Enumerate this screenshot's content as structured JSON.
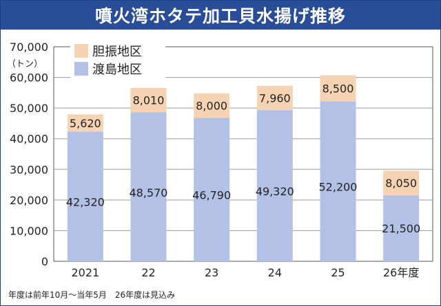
{
  "title": "噴火湾ホタテ加工貝水揚げ推移",
  "footnote": "年度は前年10月～当年5月　26年度は見込み",
  "colors": {
    "title_bg": "#2a4d97",
    "iburi": "#f5d3b3",
    "oshima": "#b4c1e6",
    "frame": "#1f3f86"
  },
  "chart_data": {
    "type": "bar",
    "stacked": true,
    "categories": [
      "2021",
      "22",
      "23",
      "24",
      "25",
      "26年度"
    ],
    "series": [
      {
        "name": "渡島地区",
        "values": [
          42320,
          48570,
          46790,
          49320,
          52200,
          21500
        ]
      },
      {
        "name": "胆振地区",
        "values": [
          5620,
          8010,
          8000,
          7960,
          8500,
          8050
        ]
      }
    ],
    "data_labels": {
      "渡島地区": [
        "42,320",
        "48,570",
        "46,790",
        "49,320",
        "52,200",
        "21,500"
      ],
      "胆振地区": [
        "5,620",
        "8,010",
        "8,000",
        "7,960",
        "8,500",
        "8,050"
      ]
    },
    "ylim": [
      0,
      70000
    ],
    "yticks": [
      0,
      10000,
      20000,
      30000,
      40000,
      50000,
      60000,
      70000
    ],
    "ytick_labels": [
      "0",
      "10,000",
      "20,000",
      "30,000",
      "40,000",
      "50,000",
      "60,000",
      "70,000"
    ],
    "ylabel": "（トン）",
    "legend": {
      "position": "top-left",
      "entries": [
        "胆振地区",
        "渡島地区"
      ]
    },
    "grid": true
  }
}
